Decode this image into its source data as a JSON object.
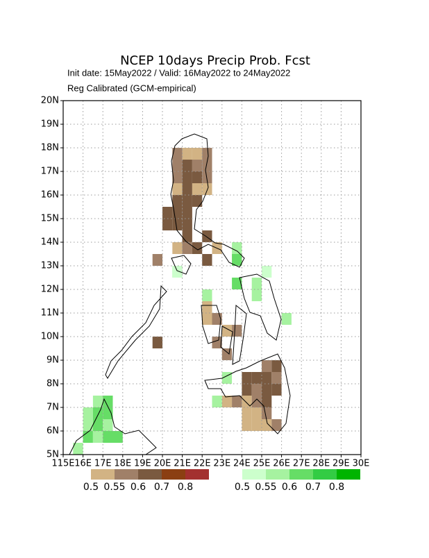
{
  "chart_data": {
    "type": "grid-map",
    "title": "NCEP 10days Precip Prob. Fcst",
    "subtitle": "Init date: 15May2022 / Valid: 16May2022 to 24May2022",
    "method": "Reg Calibrated (GCM-empirical)",
    "xlim": [
      115,
      130
    ],
    "ylim": [
      5,
      20
    ],
    "xticks": [
      {
        "value": 115,
        "label": "115E"
      },
      {
        "value": 116,
        "label": "16E"
      },
      {
        "value": 117,
        "label": "17E"
      },
      {
        "value": 118,
        "label": "18E"
      },
      {
        "value": 119,
        "label": "19E"
      },
      {
        "value": 120,
        "label": "20E"
      },
      {
        "value": 121,
        "label": "21E"
      },
      {
        "value": 122,
        "label": "22E"
      },
      {
        "value": 123,
        "label": "23E"
      },
      {
        "value": 124,
        "label": "24E"
      },
      {
        "value": 125,
        "label": "25E"
      },
      {
        "value": 126,
        "label": "26E"
      },
      {
        "value": 127,
        "label": "27E"
      },
      {
        "value": 128,
        "label": "28E"
      },
      {
        "value": 129,
        "label": "29E"
      },
      {
        "value": 130,
        "label": "30E"
      }
    ],
    "yticks": [
      {
        "value": 5,
        "label": "5N"
      },
      {
        "value": 6,
        "label": "6N"
      },
      {
        "value": 7,
        "label": "7N"
      },
      {
        "value": 8,
        "label": "8N"
      },
      {
        "value": 9,
        "label": "9N"
      },
      {
        "value": 10,
        "label": "10N"
      },
      {
        "value": 11,
        "label": "11N"
      },
      {
        "value": 12,
        "label": "12N"
      },
      {
        "value": 13,
        "label": "13N"
      },
      {
        "value": 14,
        "label": "14N"
      },
      {
        "value": 15,
        "label": "15N"
      },
      {
        "value": 16,
        "label": "16N"
      },
      {
        "value": 17,
        "label": "17N"
      },
      {
        "value": 18,
        "label": "18N"
      },
      {
        "value": 19,
        "label": "19N"
      },
      {
        "value": 20,
        "label": "20N"
      }
    ],
    "grid": true,
    "cell_size": 0.5,
    "series": [
      {
        "colorbar": {
          "levels": [
            0.5,
            0.55,
            0.6,
            0.7,
            0.8
          ],
          "colors": [
            "#d2b384",
            "#a08068",
            "#7a5a40",
            "#8b3f12",
            "#a3302f"
          ]
        },
        "lon": [
          120.5,
          121,
          121.5,
          122,
          120.5,
          121,
          121.5,
          122,
          120.5,
          121,
          121.5,
          122,
          120.5,
          121,
          121.5,
          122,
          120.5,
          121,
          121.5,
          120,
          120.5,
          121,
          120,
          120.5,
          121,
          121,
          122,
          120.5,
          121,
          121.5,
          122.5,
          119.5,
          122,
          123.5,
          122,
          122,
          122.5,
          123,
          123.5,
          122.5,
          123,
          119.5,
          124,
          124.5,
          125,
          125.5,
          124,
          124.5,
          125,
          125.5,
          123,
          123.5,
          124,
          124.5,
          125,
          124,
          124.5,
          125,
          125,
          125.5,
          124,
          124.5,
          125,
          125.5
        ],
        "lat": [
          17.5,
          17.5,
          17.5,
          17.5,
          17,
          17,
          17,
          17,
          16.5,
          16.5,
          16.5,
          16.5,
          16,
          16,
          16,
          16,
          15.5,
          15.5,
          15.5,
          15,
          15,
          15,
          14.5,
          14.5,
          14.5,
          14,
          14,
          13.5,
          13.5,
          13.5,
          13.5,
          13,
          13,
          13,
          11,
          10.5,
          10.5,
          10,
          10,
          9.5,
          9,
          9.5,
          8,
          8,
          8,
          8,
          7.5,
          7.5,
          7.5,
          7.5,
          7,
          7,
          7,
          7,
          7,
          6.5,
          6.5,
          6.5,
          6,
          6,
          6,
          6,
          8.5,
          8.5
        ],
        "values": [
          0.55,
          0.5,
          0.5,
          0.55,
          0.55,
          0.6,
          0.55,
          0.55,
          0.55,
          0.6,
          0.6,
          0.55,
          0.5,
          0.6,
          0.5,
          0.5,
          0.6,
          0.6,
          0.6,
          0.6,
          0.6,
          0.6,
          0.6,
          0.6,
          0.6,
          0.6,
          0.6,
          0.5,
          0.55,
          0.6,
          0.5,
          0.55,
          0.6,
          0.5,
          0.5,
          0.5,
          0.55,
          0.5,
          0.55,
          0.55,
          0.55,
          0.6,
          0.6,
          0.6,
          0.6,
          0.55,
          0.6,
          0.55,
          0.6,
          0.6,
          0.5,
          0.55,
          0.5,
          0.55,
          0.6,
          0.5,
          0.5,
          0.55,
          0.5,
          0.55,
          0.5,
          0.5,
          0.55,
          0.6
        ]
      },
      {
        "colorbar": {
          "levels": [
            0.5,
            0.55,
            0.6,
            0.7,
            0.8
          ],
          "colors": [
            "#ccffcc",
            "#a6f2a0",
            "#66dd66",
            "#33cc44",
            "#00b400"
          ]
        },
        "lon": [
          115.5,
          116,
          116.5,
          117,
          116,
          116.5,
          117,
          117.5,
          116,
          116.5,
          117,
          116.5,
          117,
          120.5,
          123.5,
          123.5,
          124.5,
          125,
          122,
          124.5,
          126,
          122.5,
          123,
          120.5,
          123.5
        ],
        "lat": [
          5,
          5.5,
          5.5,
          5.5,
          6,
          6,
          6,
          5.5,
          6.5,
          6.5,
          6.5,
          7,
          7,
          12.5,
          13,
          12,
          12,
          12.5,
          11.5,
          11.5,
          10.5,
          7,
          8,
          12.5,
          13.5
        ],
        "values": [
          0.55,
          0.6,
          0.55,
          0.6,
          0.55,
          0.6,
          0.55,
          0.6,
          0.55,
          0.6,
          0.6,
          0.55,
          0.6,
          0.55,
          0.6,
          0.6,
          0.55,
          0.5,
          0.55,
          0.55,
          0.55,
          0.55,
          0.55,
          0.5,
          0.55
        ]
      }
    ]
  }
}
